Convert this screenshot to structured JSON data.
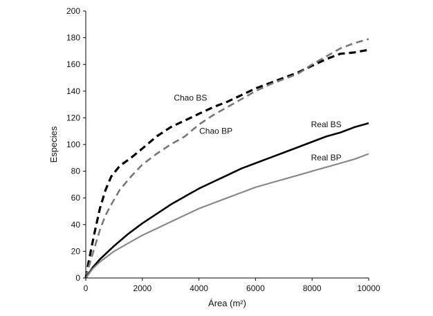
{
  "chart_data": {
    "type": "line",
    "title": "",
    "xlabel": "Área (m²)",
    "ylabel": "Especies",
    "xlim": [
      0,
      10000
    ],
    "ylim": [
      0,
      200
    ],
    "xticks": [
      0,
      2000,
      4000,
      6000,
      8000,
      10000
    ],
    "yticks": [
      0,
      20,
      40,
      60,
      80,
      100,
      120,
      140,
      160,
      180,
      200
    ],
    "grid": false,
    "legend": "none",
    "series": [
      {
        "name": "Chao BS",
        "color": "#000000",
        "dashed": true,
        "width": 3.2,
        "x": [
          0,
          100,
          300,
          500,
          700,
          900,
          1200,
          1600,
          2000,
          2500,
          3000,
          3500,
          4000,
          4500,
          5000,
          5500,
          6000,
          6500,
          7000,
          7500,
          8000,
          8500,
          9000,
          9500,
          10000
        ],
        "y": [
          0,
          12,
          33,
          52,
          66,
          76,
          84,
          90,
          97,
          106,
          113,
          118,
          123,
          128,
          132,
          137,
          142,
          146,
          150,
          154,
          159,
          164,
          168,
          169,
          171
        ]
      },
      {
        "name": "Chao BP",
        "color": "#777777",
        "dashed": true,
        "width": 2.6,
        "x": [
          0,
          100,
          300,
          500,
          700,
          900,
          1200,
          1600,
          2000,
          2500,
          3000,
          3500,
          4000,
          4500,
          5000,
          5500,
          6000,
          6500,
          7000,
          7500,
          8000,
          8500,
          9000,
          9500,
          10000
        ],
        "y": [
          0,
          8,
          22,
          36,
          47,
          55,
          66,
          76,
          85,
          93,
          100,
          106,
          115,
          122,
          128,
          134,
          140,
          145,
          149,
          153,
          160,
          166,
          172,
          176,
          179
        ]
      },
      {
        "name": "Real BS",
        "color": "#000000",
        "dashed": false,
        "width": 2.6,
        "x": [
          0,
          250,
          500,
          1000,
          1500,
          2000,
          2500,
          3000,
          3500,
          4000,
          4500,
          5000,
          5500,
          6000,
          6500,
          7000,
          7500,
          8000,
          8500,
          9000,
          9500,
          10000
        ],
        "y": [
          0,
          8,
          14,
          24,
          33,
          41,
          48,
          55,
          61,
          67,
          72,
          77,
          82,
          86,
          90,
          94,
          98,
          102,
          106,
          109,
          113,
          116
        ]
      },
      {
        "name": "Real BP",
        "color": "#888888",
        "dashed": false,
        "width": 2.2,
        "x": [
          0,
          250,
          500,
          1000,
          1500,
          2000,
          2500,
          3000,
          3500,
          4000,
          4500,
          5000,
          5500,
          6000,
          6500,
          7000,
          7500,
          8000,
          8500,
          9000,
          9500,
          10000
        ],
        "y": [
          0,
          7,
          12,
          20,
          26,
          32,
          37,
          42,
          47,
          52,
          56,
          60,
          64,
          68,
          71,
          74,
          77,
          80,
          83,
          86,
          89,
          93
        ]
      }
    ],
    "annotations": [
      {
        "text": "Chao BS",
        "series": "Chao BS",
        "x": 3700,
        "y": 133
      },
      {
        "text": "Chao BP",
        "series": "Chao BP",
        "x": 4600,
        "y": 108
      },
      {
        "text": "Real BS",
        "series": "Real BS",
        "x": 8500,
        "y": 113
      },
      {
        "text": "Real BP",
        "series": "Real BP",
        "x": 8500,
        "y": 88
      }
    ]
  }
}
